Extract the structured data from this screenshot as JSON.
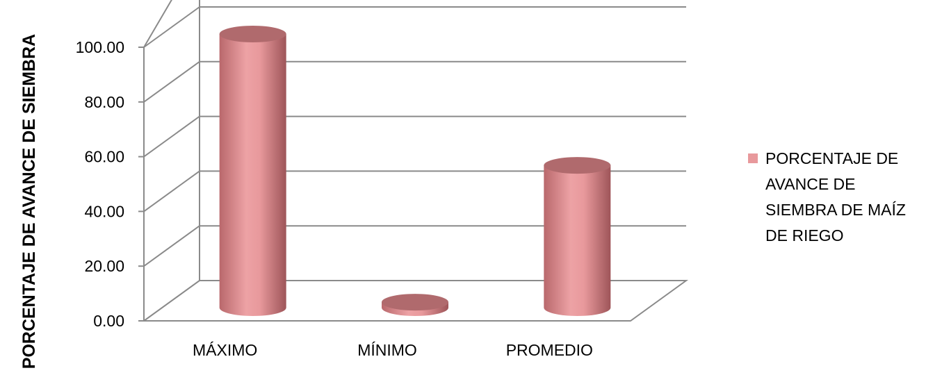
{
  "chart_data": {
    "type": "bar",
    "style": "3d-cylinder",
    "categories": [
      "MÁXIMO",
      "MÍNIMO",
      "PROMEDIO"
    ],
    "series": [
      {
        "name": "PORCENTAJE DE AVANCE DE SIEMBRA DE MAÍZ DE RIEGO",
        "values": [
          100.0,
          2.0,
          52.0
        ],
        "color": "#e8999c"
      }
    ],
    "ylabel": "PORCENTAJE DE AVANCE DE SIEMBRA",
    "xlabel": "",
    "ylim": [
      0,
      100
    ],
    "yticks": [
      "0.00",
      "20.00",
      "40.00",
      "60.00",
      "80.00",
      "100.00"
    ],
    "legend": {
      "position": "right",
      "lines": [
        "PORCENTAJE DE",
        "AVANCE DE",
        "SIEMBRA DE MAÍZ",
        "DE RIEGO"
      ]
    },
    "grid": true
  }
}
